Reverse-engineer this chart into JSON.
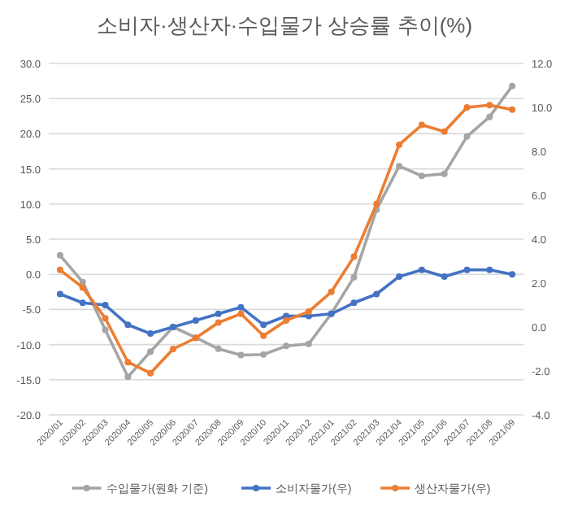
{
  "chart_data": {
    "type": "line",
    "title": "소비자·생산자·수입물가 상승률 추이(%)",
    "categories": [
      "2020/01",
      "2020/02",
      "2020/03",
      "2020/04",
      "2020/05",
      "2020/06",
      "2020/07",
      "2020/08",
      "2020/09",
      "2020/10",
      "2020/11",
      "2020/12",
      "2021/01",
      "2021/02",
      "2021/03",
      "2021/04",
      "2021/05",
      "2021/06",
      "2021/07",
      "2021/08",
      "2021/09"
    ],
    "series": [
      {
        "name": "수입물가(원화 기준)",
        "color": "#a5a5a5",
        "values": [
          2.7,
          -1.1,
          -7.9,
          -14.6,
          -11.0,
          -7.5,
          -9.0,
          -10.6,
          -11.5,
          -11.4,
          -10.2,
          -9.9,
          -5.6,
          -0.4,
          9.2,
          15.4,
          14.0,
          14.3,
          19.6,
          22.4,
          26.8
        ]
      },
      {
        "name": "소비자물가(우)",
        "color": "#4472c4",
        "axis": "y2",
        "values": [
          1.5,
          1.1,
          1.0,
          0.1,
          -0.3,
          0.0,
          0.3,
          0.6,
          0.9,
          0.1,
          0.5,
          0.5,
          0.6,
          1.1,
          1.5,
          2.3,
          2.6,
          2.3,
          2.6,
          2.6,
          2.4
        ]
      },
      {
        "name": "생산자물가(우)",
        "color": "#ed7d31",
        "axis": "y2",
        "values": [
          2.6,
          1.8,
          0.4,
          -1.6,
          -2.1,
          -1.0,
          -0.5,
          0.2,
          0.6,
          -0.4,
          0.3,
          0.7,
          1.6,
          3.2,
          5.6,
          8.3,
          9.2,
          8.9,
          10.0,
          10.1,
          9.9
        ]
      }
    ],
    "ylim": [
      -20,
      30
    ],
    "yticks": [
      {
        "value": -20,
        "label": "-20.0"
      },
      {
        "value": -15,
        "label": "-15.0"
      },
      {
        "value": -10,
        "label": "-10.0"
      },
      {
        "value": -5,
        "label": "-5.0"
      },
      {
        "value": 0,
        "label": "0.0"
      },
      {
        "value": 5,
        "label": "5.0"
      },
      {
        "value": 10,
        "label": "10.0"
      },
      {
        "value": 15,
        "label": "15.0"
      },
      {
        "value": 20,
        "label": "20.0"
      },
      {
        "value": 25,
        "label": "25.0"
      },
      {
        "value": 30,
        "label": "30.0"
      }
    ],
    "y2lim": [
      -4,
      12
    ],
    "y2ticks": [
      {
        "value": -4,
        "label": "-4.0"
      },
      {
        "value": -2,
        "label": "-2.0"
      },
      {
        "value": 0,
        "label": "0.0"
      },
      {
        "value": 2,
        "label": "2.0"
      },
      {
        "value": 4,
        "label": "4.0"
      },
      {
        "value": 6,
        "label": "6.0"
      },
      {
        "value": 8,
        "label": "8.0"
      },
      {
        "value": 10,
        "label": "10.0"
      },
      {
        "value": 12,
        "label": "12.0"
      }
    ],
    "grid": "y",
    "legend": "bottom",
    "marker": "circle",
    "line_style": "solid"
  }
}
